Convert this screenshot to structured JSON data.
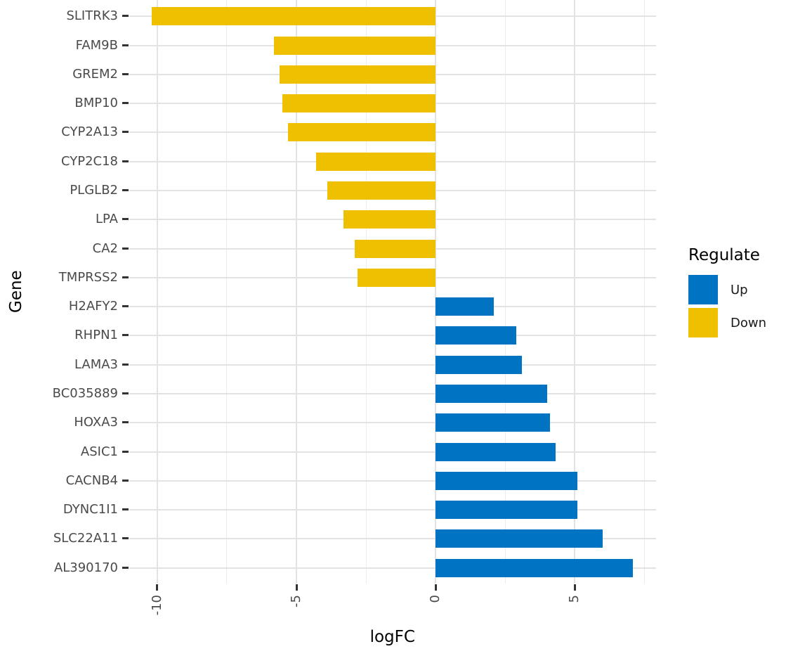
{
  "chart_data": {
    "type": "bar",
    "orientation": "horizontal",
    "title": "",
    "xlabel": "logFC",
    "ylabel": "Gene",
    "xlim": [
      -11.02,
      7.92
    ],
    "x_ticks": [
      -10,
      -5,
      0,
      5
    ],
    "x_minor_gridlines": [
      -7.5,
      -2.5,
      2.5,
      7.5
    ],
    "grid": "light-gray major and minor vertical lines, major horizontal lines, white panel",
    "legend": {
      "title": "Regulate",
      "position": "right",
      "items": [
        {
          "label": "Up",
          "color": "#0073C2"
        },
        {
          "label": "Down",
          "color": "#EFC000"
        }
      ]
    },
    "colors": {
      "Up": "#0073C2",
      "Down": "#EFC000"
    },
    "bars": [
      {
        "gene": "SLITRK3",
        "logFC": -10.2,
        "regulate": "Down"
      },
      {
        "gene": "FAM9B",
        "logFC": -5.8,
        "regulate": "Down"
      },
      {
        "gene": "GREM2",
        "logFC": -5.6,
        "regulate": "Down"
      },
      {
        "gene": "BMP10",
        "logFC": -5.5,
        "regulate": "Down"
      },
      {
        "gene": "CYP2A13",
        "logFC": -5.3,
        "regulate": "Down"
      },
      {
        "gene": "CYP2C18",
        "logFC": -4.3,
        "regulate": "Down"
      },
      {
        "gene": "PLGLB2",
        "logFC": -3.9,
        "regulate": "Down"
      },
      {
        "gene": "LPA",
        "logFC": -3.3,
        "regulate": "Down"
      },
      {
        "gene": "CA2",
        "logFC": -2.9,
        "regulate": "Down"
      },
      {
        "gene": "TMPRSS2",
        "logFC": -2.8,
        "regulate": "Down"
      },
      {
        "gene": "H2AFY2",
        "logFC": 2.1,
        "regulate": "Up"
      },
      {
        "gene": "RHPN1",
        "logFC": 2.9,
        "regulate": "Up"
      },
      {
        "gene": "LAMA3",
        "logFC": 3.1,
        "regulate": "Up"
      },
      {
        "gene": "BC035889",
        "logFC": 4.0,
        "regulate": "Up"
      },
      {
        "gene": "HOXA3",
        "logFC": 4.1,
        "regulate": "Up"
      },
      {
        "gene": "ASIC1",
        "logFC": 4.3,
        "regulate": "Up"
      },
      {
        "gene": "CACNB4",
        "logFC": 5.1,
        "regulate": "Up"
      },
      {
        "gene": "DYNC1I1",
        "logFC": 5.1,
        "regulate": "Up"
      },
      {
        "gene": "SLC22A11",
        "logFC": 6.0,
        "regulate": "Up"
      },
      {
        "gene": "AL390170",
        "logFC": 7.1,
        "regulate": "Up"
      }
    ]
  }
}
